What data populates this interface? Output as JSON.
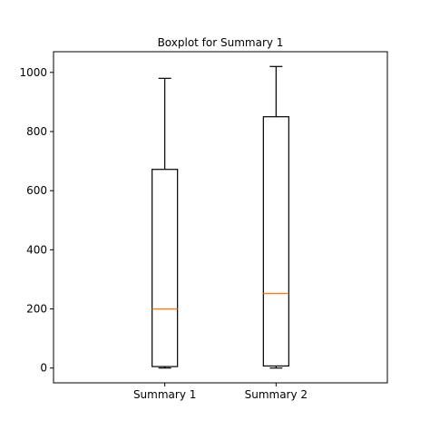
{
  "chart_data": {
    "type": "boxplot",
    "title": "Boxplot for Summary 1",
    "xlabel": "",
    "ylabel": "",
    "ylim": [
      -50,
      1070
    ],
    "yticks": [
      0,
      200,
      400,
      600,
      800,
      1000
    ],
    "ytick_labels": [
      "0",
      "200",
      "400",
      "600",
      "800",
      "1000"
    ],
    "categories": [
      "Summary 1",
      "Summary 2"
    ],
    "boxes": [
      {
        "label": "Summary 1",
        "whisker_low": 0,
        "q1": 5,
        "median": 200,
        "q3": 672,
        "whisker_high": 980
      },
      {
        "label": "Summary 2",
        "whisker_low": 0,
        "q1": 7,
        "median": 252,
        "q3": 850,
        "whisker_high": 1020
      }
    ],
    "grid": false,
    "colors": {
      "box": "#000000",
      "median": "#ff7f0e",
      "axes": "#000000",
      "background": "#ffffff"
    }
  }
}
